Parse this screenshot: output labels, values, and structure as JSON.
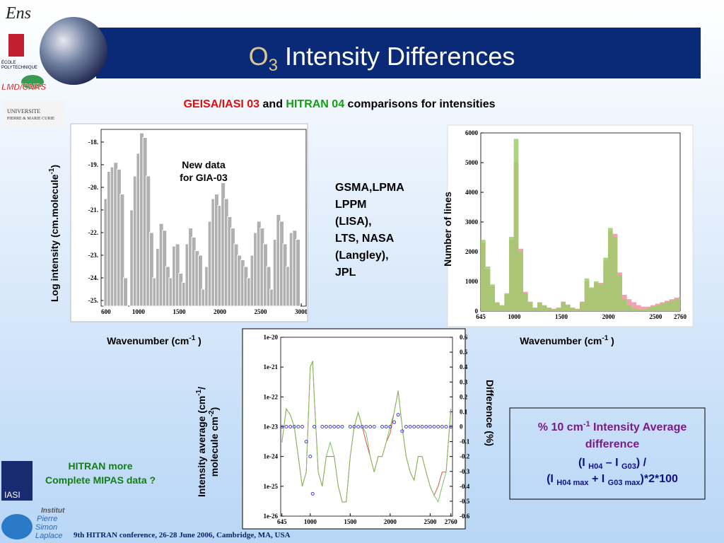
{
  "title": {
    "main": "O",
    "sub": "3",
    "rest": " Intensity Differences"
  },
  "subtitle": {
    "geisa": "GEISA/IASI 03",
    "and": " and ",
    "hitran": "HITRAN 04",
    "rest": " comparisons for intensities"
  },
  "new_data": [
    "New data",
    "for GIA-03"
  ],
  "sources": [
    "GSMA,LPMA",
    " LPPM",
    "(LISA),",
    "LTS, NASA",
    "(Langley),",
    " JPL"
  ],
  "labels": {
    "log_intensity": [
      "Log intensity (cm.molecule",
      "-1",
      ")"
    ],
    "wavenumber_left": [
      "Wavenumber (cm",
      "-1",
      " )"
    ],
    "wavenumber_right": [
      "Wavenumber (cm",
      "-1",
      " )"
    ],
    "number_of_lines": "Number of lines",
    "intensity_average": [
      "Intensity average (cm",
      "-1",
      "/"
    ],
    "intensity_average_2": [
      "molecule cm",
      "-2",
      ")"
    ],
    "difference": "Difference (%)"
  },
  "box": {
    "line1": [
      "% 10 cm",
      "-1",
      " Intensity Average"
    ],
    "line2": "difference",
    "line3": [
      "(I ",
      "H04",
      " – I ",
      "G03",
      ") /"
    ],
    "line4": [
      "(I ",
      "H04 max",
      " + I ",
      "G03 max",
      ")*2*100"
    ]
  },
  "question": [
    "HITRAN more",
    "Complete MIPAS data ?"
  ],
  "footer": "9th HITRAN conference, 26-28 June 2006, Cambridge, MA, USA",
  "logos": {
    "ens": "Ens",
    "polytechnique": [
      "ÉCOLE",
      "POLYTECHNIQUE"
    ],
    "lmd": "LMD/CNRS",
    "upmc": [
      "UNIVERSITE",
      "PIERRE & MARIE CURIE"
    ],
    "iasi": "IASI",
    "ipsl": [
      "Institut",
      "Pierre",
      "Simon",
      "Laplace"
    ]
  },
  "chart_data": [
    {
      "type": "bar",
      "color": "#b0b0b0",
      "xlim": [
        540,
        3060
      ],
      "ylim": [
        -25.25,
        -17.44
      ],
      "xticks": [
        600,
        1000,
        1500,
        2000,
        2500,
        3000
      ],
      "yticks": [
        {
          "value": -18,
          "label": "-18."
        },
        {
          "value": -19,
          "label": "-19."
        },
        {
          "value": -20,
          "label": "-20."
        },
        {
          "value": -21,
          "label": "-21."
        },
        {
          "value": -22,
          "label": "-22."
        },
        {
          "value": -23,
          "label": "-23."
        },
        {
          "value": -24,
          "label": "-24."
        },
        {
          "value": -25,
          "label": "-25."
        }
      ],
      "x": [
        600,
        640,
        680,
        720,
        760,
        800,
        840,
        880,
        920,
        960,
        1000,
        1040,
        1080,
        1120,
        1160,
        1200,
        1240,
        1280,
        1320,
        1360,
        1400,
        1440,
        1480,
        1520,
        1560,
        1600,
        1640,
        1680,
        1720,
        1760,
        1800,
        1840,
        1880,
        1920,
        1960,
        2000,
        2040,
        2080,
        2120,
        2160,
        2200,
        2240,
        2280,
        2320,
        2360,
        2400,
        2440,
        2480,
        2520,
        2560,
        2600,
        2640,
        2680,
        2720,
        2760,
        2800,
        2840,
        2880,
        2920,
        2960
      ],
      "values": [
        -20.5,
        -19.3,
        -19.1,
        -18.9,
        -19.2,
        -20.3,
        -24,
        null,
        -21,
        -19.5,
        -18.5,
        -17.6,
        -17.8,
        -19.5,
        -22,
        -24,
        -22.7,
        -21.6,
        -21.9,
        -23.5,
        -24,
        -22.6,
        -22.5,
        -23.8,
        -24.2,
        -22.5,
        -21.8,
        -22.2,
        -22.8,
        -23,
        -24.5,
        -23.5,
        -21.5,
        -20.5,
        -20.3,
        -20.8,
        -19.8,
        -20.5,
        -21.3,
        -21.8,
        -22.5,
        -23,
        -23.2,
        -23.5,
        -24,
        -23,
        -22,
        -21.5,
        -21.8,
        -22.5,
        -23.5,
        -24.5,
        -22.3,
        -21.2,
        -21.5,
        -22.5,
        -23.5,
        -22,
        -21.9,
        -22.3
      ]
    },
    {
      "type": "histogram",
      "xlim": [
        645,
        2760
      ],
      "ylim": [
        0,
        6000
      ],
      "xticks": [
        645,
        1000,
        1500,
        2000,
        2500,
        2760
      ],
      "yticks": [
        0,
        1000,
        2000,
        3000,
        4000,
        5000,
        6000
      ],
      "bins": [
        645,
        695,
        745,
        795,
        845,
        895,
        945,
        995,
        1045,
        1095,
        1145,
        1195,
        1245,
        1295,
        1345,
        1395,
        1445,
        1495,
        1545,
        1595,
        1645,
        1695,
        1745,
        1795,
        1845,
        1895,
        1945,
        1995,
        2045,
        2095,
        2145,
        2195,
        2245,
        2295,
        2345,
        2395,
        2445,
        2495,
        2545,
        2595,
        2645,
        2695,
        2745,
        2760
      ],
      "series": [
        {
          "color": "#f4a0b0",
          "values": [
            2300,
            1400,
            850,
            280,
            180,
            550,
            2400,
            5000,
            2100,
            650,
            320,
            120,
            280,
            180,
            120,
            80,
            120,
            320,
            220,
            120,
            80,
            320,
            1000,
            760,
            950,
            950,
            1700,
            2700,
            2600,
            1300,
            550,
            400,
            300,
            200,
            150,
            150,
            200,
            250,
            300,
            350,
            400,
            450,
            480
          ]
        },
        {
          "color": "#9ccc6a",
          "values": [
            2400,
            1500,
            900,
            300,
            200,
            600,
            2500,
            5800,
            2000,
            600,
            300,
            100,
            300,
            200,
            100,
            50,
            100,
            300,
            200,
            100,
            50,
            300,
            1100,
            800,
            1000,
            900,
            1800,
            2800,
            2500,
            1200,
            400,
            200,
            100,
            50,
            50,
            100,
            150,
            200,
            250,
            300,
            350,
            400,
            450
          ]
        }
      ]
    },
    {
      "type": "line",
      "ylog": true,
      "xlim": [
        630,
        2780
      ],
      "ylim": [
        1e-26,
        1e-20
      ],
      "y2lim": [
        -0.6,
        0.6
      ],
      "xticks": [
        645,
        1000,
        1500,
        2000,
        2500,
        2760
      ],
      "yticks": [
        {
          "value": 1e-20,
          "label": "1e-20"
        },
        {
          "value": 1e-21,
          "label": "1e-21"
        },
        {
          "value": 1e-22,
          "label": "1e-22"
        },
        {
          "value": 1e-23,
          "label": "1e-23"
        },
        {
          "value": 1e-24,
          "label": "1e-24"
        },
        {
          "value": 1e-25,
          "label": "1e-25"
        },
        {
          "value": 1e-26,
          "label": "1e-26"
        }
      ],
      "y2ticks": [
        0.6,
        0.5,
        0.4,
        0.3,
        0.2,
        0.1,
        0,
        -0.1,
        -0.2,
        -0.3,
        -0.4,
        -0.5,
        -0.6
      ],
      "x": [
        645,
        700,
        750,
        800,
        850,
        900,
        950,
        1000,
        1030,
        1050,
        1100,
        1150,
        1200,
        1250,
        1300,
        1350,
        1400,
        1450,
        1500,
        1550,
        1600,
        1650,
        1700,
        1750,
        1800,
        1850,
        1900,
        1950,
        2000,
        2050,
        2100,
        2150,
        2200,
        2250,
        2300,
        2350,
        2400,
        2450,
        2500,
        2550,
        2600,
        2650,
        2700,
        2760
      ],
      "series": [
        {
          "color": "#e05050",
          "values": [
            3e-24,
            4e-23,
            2.5e-23,
            1e-23,
            1e-24,
            1e-25,
            3e-25,
            1e-21,
            1.6e-21,
            1e-22,
            3e-25,
            1e-25,
            1e-24,
            1e-24,
            1e-24,
            1e-25,
            3e-26,
            3e-26,
            1e-24,
            1e-23,
            3e-23,
            1e-23,
            3e-24,
            1e-24,
            3e-25,
            1e-24,
            1e-24,
            3e-24,
            6e-24,
            3e-23,
            1.6e-22,
            1e-23,
            1e-24,
            3e-25,
            1.6e-25,
            1e-24,
            1e-24,
            3e-25,
            1e-25,
            5e-26,
            1e-25,
            3e-25,
            3e-25,
            4e-23
          ]
        },
        {
          "color": "#7fc060",
          "values": [
            3e-24,
            4e-23,
            2.5e-23,
            1e-23,
            1e-24,
            1e-25,
            3e-25,
            1e-21,
            1.6e-21,
            1e-22,
            3e-25,
            1e-25,
            1e-24,
            3e-24,
            1e-24,
            1e-25,
            3e-26,
            3e-26,
            1e-24,
            1e-23,
            3e-23,
            1e-23,
            6e-24,
            1e-24,
            3e-25,
            1e-24,
            1e-24,
            3e-24,
            1e-23,
            3e-23,
            1.6e-22,
            1e-23,
            1e-24,
            3e-25,
            1.6e-25,
            1e-24,
            1e-24,
            3e-25,
            1e-25,
            5e-26,
            3e-26,
            1e-25,
            3e-25,
            4e-23
          ]
        },
        {
          "color": "#4040e0",
          "axis": "y2",
          "mode": "markers",
          "values": [
            0,
            0,
            0,
            0,
            0,
            0,
            -0.1,
            -0.2,
            -0.45,
            0,
            null,
            0,
            0,
            0,
            0,
            0,
            0,
            null,
            0,
            0,
            0,
            0,
            0,
            0,
            0,
            null,
            0,
            0,
            0,
            0.03,
            0.08,
            -0.03,
            0,
            0,
            0,
            0,
            0,
            0,
            0,
            0,
            0,
            0,
            0,
            0
          ]
        }
      ]
    }
  ]
}
